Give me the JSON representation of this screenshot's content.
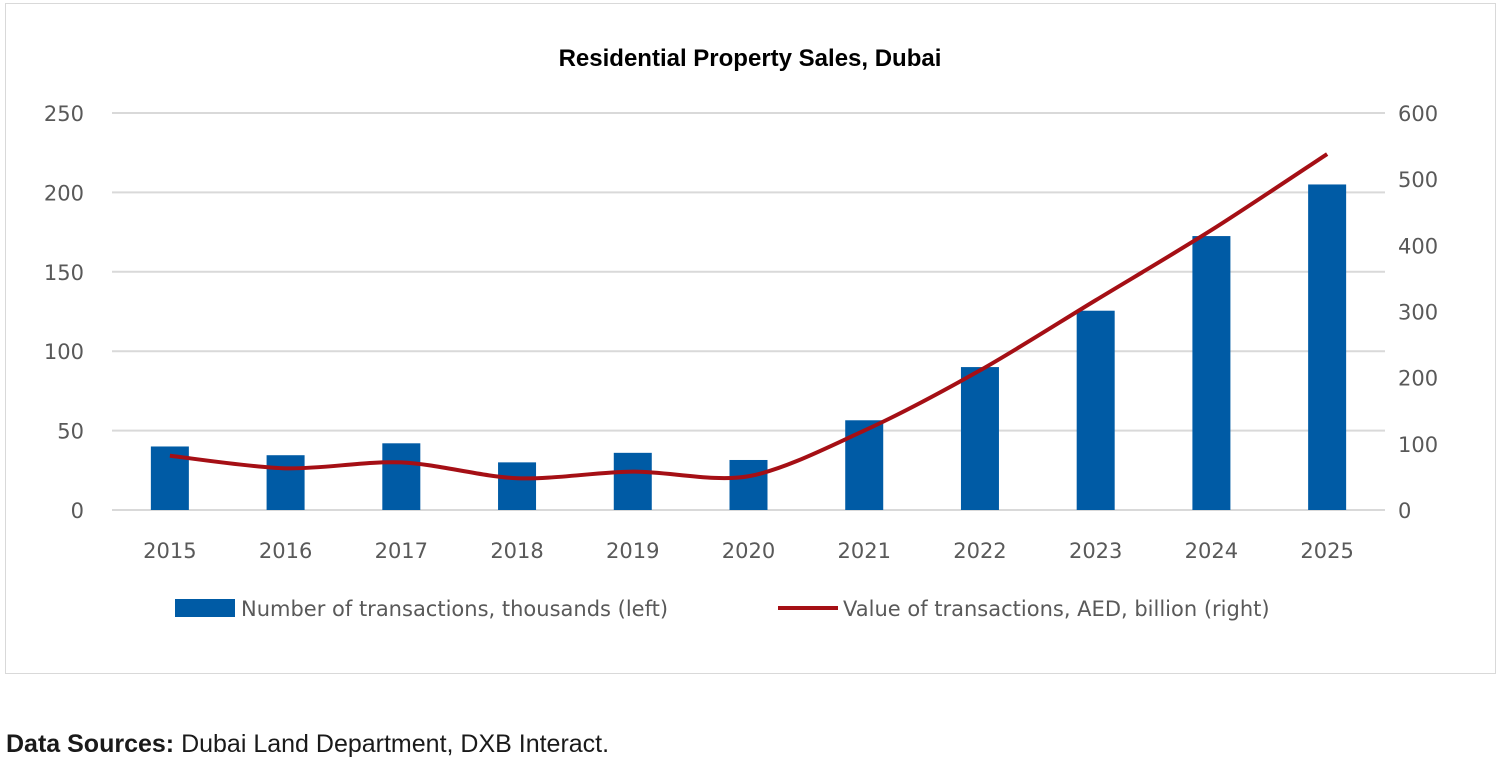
{
  "chart_data": {
    "type": "bar+line",
    "title": "Residential Property Sales, Dubai",
    "categories": [
      "2015",
      "2016",
      "2017",
      "2018",
      "2019",
      "2020",
      "2021",
      "2022",
      "2023",
      "2024",
      "2025"
    ],
    "series": [
      {
        "name": "Number of transactions, thousands (left)",
        "type": "bar",
        "axis": "left",
        "color": "#005ba5",
        "values": [
          40,
          34.5,
          42,
          30,
          36,
          31.5,
          56.5,
          90,
          125.5,
          172.5,
          205
        ]
      },
      {
        "name": "Value of transactions, AED, billion (right)",
        "type": "line",
        "axis": "right",
        "color": "#a50f15",
        "values": [
          82,
          63,
          72,
          48,
          58,
          51,
          120,
          211,
          317,
          423,
          538
        ]
      }
    ],
    "left_axis": {
      "ylim": [
        0,
        250
      ],
      "ticks": [
        "0",
        "50",
        "100",
        "150",
        "200",
        "250"
      ]
    },
    "right_axis": {
      "ylim": [
        0,
        600
      ],
      "ticks": [
        "0",
        "100",
        "200",
        "300",
        "400",
        "500",
        "600"
      ]
    },
    "grid": true,
    "legend_placement": "bottom"
  },
  "footer": {
    "label": "Data Sources:",
    "text": " Dubai Land Department, DXB Interact."
  }
}
